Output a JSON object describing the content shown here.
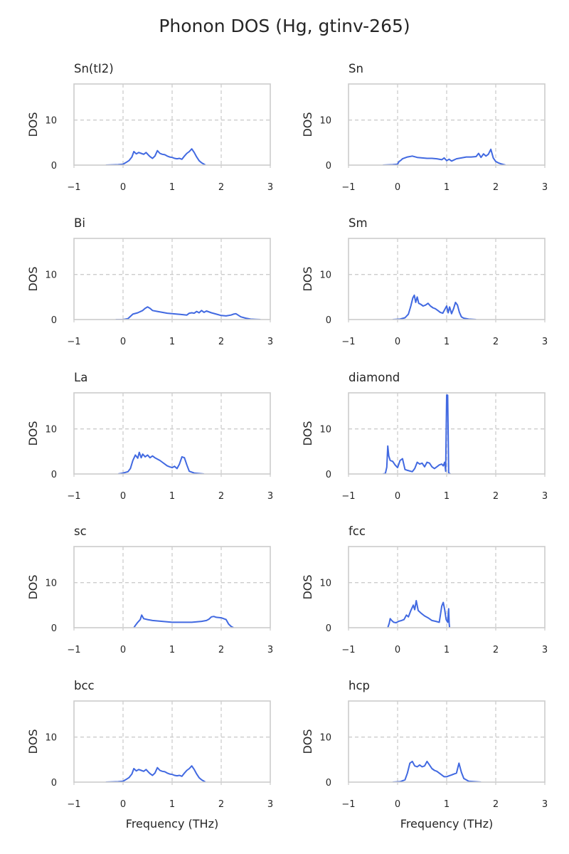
{
  "figure": {
    "title": "Phonon DOS (Hg, gtinv-265)",
    "line_color": "#4169e1"
  },
  "chart_data": [
    {
      "type": "line",
      "title": "Sn(tI2)",
      "xlabel": "",
      "ylabel": "DOS",
      "xlim": [
        -1,
        3
      ],
      "ylim": [
        0,
        18
      ],
      "xticks": [
        "−1",
        "0",
        "1",
        "2",
        "3"
      ],
      "yticks": [
        "0",
        "10"
      ],
      "grid": true,
      "x": [
        -0.35,
        -0.1,
        0.0,
        0.05,
        0.12,
        0.18,
        0.22,
        0.27,
        0.32,
        0.37,
        0.42,
        0.47,
        0.52,
        0.56,
        0.6,
        0.65,
        0.7,
        0.75,
        0.8,
        0.85,
        0.9,
        0.95,
        1.0,
        1.05,
        1.1,
        1.15,
        1.2,
        1.25,
        1.3,
        1.35,
        1.4,
        1.45,
        1.5,
        1.55,
        1.6,
        1.65,
        1.68
      ],
      "y": [
        0,
        0.1,
        0.2,
        0.5,
        1.0,
        1.8,
        3.0,
        2.5,
        2.8,
        2.6,
        2.4,
        2.8,
        2.2,
        1.8,
        1.5,
        2.0,
        3.2,
        2.6,
        2.4,
        2.3,
        2.0,
        1.8,
        1.7,
        1.5,
        1.4,
        1.5,
        1.3,
        2.0,
        2.6,
        3.0,
        3.6,
        2.8,
        1.8,
        1.0,
        0.5,
        0.2,
        0
      ]
    },
    {
      "type": "line",
      "title": "Sn",
      "xlabel": "",
      "ylabel": "DOS",
      "xlim": [
        -1,
        3
      ],
      "ylim": [
        0,
        18
      ],
      "xticks": [
        "−1",
        "0",
        "1",
        "2",
        "3"
      ],
      "yticks": [
        "0",
        "10"
      ],
      "grid": true,
      "x": [
        -0.3,
        -0.1,
        0.0,
        0.03,
        0.06,
        0.1,
        0.2,
        0.3,
        0.4,
        0.5,
        0.6,
        0.7,
        0.8,
        0.9,
        0.95,
        1.0,
        1.05,
        1.1,
        1.2,
        1.3,
        1.4,
        1.5,
        1.6,
        1.65,
        1.7,
        1.75,
        1.8,
        1.85,
        1.9,
        1.95,
        2.0,
        2.05,
        2.1,
        2.2
      ],
      "y": [
        0,
        0.1,
        0.2,
        0.8,
        1.0,
        1.4,
        1.8,
        2.0,
        1.7,
        1.6,
        1.5,
        1.5,
        1.4,
        1.2,
        1.6,
        1.0,
        1.3,
        0.9,
        1.4,
        1.6,
        1.8,
        1.8,
        1.9,
        2.6,
        1.7,
        2.5,
        2.0,
        2.4,
        3.5,
        1.6,
        0.8,
        0.5,
        0.3,
        0
      ]
    },
    {
      "type": "line",
      "title": "Bi",
      "xlabel": "",
      "ylabel": "DOS",
      "xlim": [
        -1,
        3
      ],
      "ylim": [
        0,
        18
      ],
      "xticks": [
        "−1",
        "0",
        "1",
        "2",
        "3"
      ],
      "yticks": [
        "0",
        "10"
      ],
      "grid": true,
      "x": [
        -0.15,
        0.0,
        0.1,
        0.2,
        0.3,
        0.4,
        0.45,
        0.5,
        0.55,
        0.6,
        0.7,
        0.8,
        0.9,
        1.0,
        1.1,
        1.2,
        1.3,
        1.35,
        1.4,
        1.45,
        1.5,
        1.55,
        1.6,
        1.65,
        1.7,
        1.8,
        1.9,
        2.0,
        2.1,
        2.2,
        2.25,
        2.3,
        2.4,
        2.5,
        2.6,
        2.7,
        2.8
      ],
      "y": [
        0,
        0,
        0.2,
        1.2,
        1.5,
        2.0,
        2.5,
        2.8,
        2.5,
        2.0,
        1.8,
        1.6,
        1.4,
        1.3,
        1.2,
        1.1,
        1.0,
        1.4,
        1.5,
        1.4,
        1.8,
        1.5,
        2.0,
        1.6,
        1.9,
        1.5,
        1.2,
        0.9,
        0.8,
        1.0,
        1.2,
        1.3,
        0.6,
        0.3,
        0.1,
        0.05,
        0
      ]
    },
    {
      "type": "line",
      "title": "Sm",
      "xlabel": "",
      "ylabel": "DOS",
      "xlim": [
        -1,
        3
      ],
      "ylim": [
        0,
        18
      ],
      "xticks": [
        "−1",
        "0",
        "1",
        "2",
        "3"
      ],
      "yticks": [
        "0",
        "10"
      ],
      "grid": true,
      "x": [
        -0.1,
        0.05,
        0.15,
        0.22,
        0.27,
        0.31,
        0.34,
        0.37,
        0.4,
        0.43,
        0.47,
        0.52,
        0.57,
        0.62,
        0.67,
        0.72,
        0.77,
        0.82,
        0.87,
        0.92,
        0.97,
        1.0,
        1.03,
        1.06,
        1.1,
        1.14,
        1.18,
        1.22,
        1.26,
        1.3,
        1.35,
        1.45,
        1.6
      ],
      "y": [
        0,
        0.1,
        0.4,
        1.2,
        3.0,
        4.8,
        5.4,
        3.8,
        5.0,
        3.6,
        3.4,
        3.0,
        3.2,
        3.6,
        3.0,
        2.6,
        2.4,
        2.0,
        1.6,
        1.4,
        2.4,
        3.0,
        1.5,
        2.8,
        1.3,
        2.4,
        3.8,
        3.2,
        1.6,
        0.6,
        0.3,
        0.1,
        0
      ]
    },
    {
      "type": "line",
      "title": "La",
      "xlabel": "",
      "ylabel": "DOS",
      "xlim": [
        -1,
        3
      ],
      "ylim": [
        0,
        18
      ],
      "xticks": [
        "−1",
        "0",
        "1",
        "2",
        "3"
      ],
      "yticks": [
        "0",
        "10"
      ],
      "grid": true,
      "x": [
        -0.1,
        0.0,
        0.1,
        0.15,
        0.2,
        0.25,
        0.3,
        0.33,
        0.37,
        0.4,
        0.45,
        0.5,
        0.55,
        0.6,
        0.65,
        0.7,
        0.75,
        0.8,
        0.85,
        0.9,
        0.95,
        1.0,
        1.05,
        1.1,
        1.15,
        1.2,
        1.25,
        1.3,
        1.35,
        1.45,
        1.65
      ],
      "y": [
        0,
        0.2,
        0.5,
        1.2,
        3.0,
        4.2,
        3.5,
        4.8,
        3.6,
        4.4,
        3.8,
        4.2,
        3.6,
        4.0,
        3.6,
        3.3,
        3.0,
        2.6,
        2.2,
        1.8,
        1.6,
        1.4,
        1.7,
        1.2,
        2.2,
        3.8,
        3.6,
        2.0,
        0.6,
        0.2,
        0
      ]
    },
    {
      "type": "line",
      "title": "diamond",
      "xlabel": "",
      "ylabel": "DOS",
      "xlim": [
        -1,
        3
      ],
      "ylim": [
        0,
        18
      ],
      "xticks": [
        "−1",
        "0",
        "1",
        "2",
        "3"
      ],
      "yticks": [
        "0",
        "10"
      ],
      "grid": true,
      "x": [
        -0.3,
        -0.25,
        -0.22,
        -0.2,
        -0.18,
        -0.15,
        -0.1,
        -0.05,
        0.0,
        0.05,
        0.1,
        0.15,
        0.2,
        0.3,
        0.35,
        0.4,
        0.45,
        0.5,
        0.55,
        0.6,
        0.65,
        0.7,
        0.75,
        0.8,
        0.85,
        0.9,
        0.93,
        0.96,
        0.98,
        1.0,
        1.01,
        1.02,
        1.04,
        1.06,
        1.08
      ],
      "y": [
        0,
        0.1,
        1.5,
        6.2,
        4.0,
        3.0,
        2.8,
        2.0,
        1.4,
        3.0,
        3.4,
        1.0,
        0.8,
        0.5,
        1.2,
        2.6,
        2.2,
        2.4,
        1.6,
        2.6,
        2.4,
        1.6,
        1.2,
        1.6,
        2.0,
        2.2,
        1.8,
        2.6,
        0.6,
        17.5,
        17.5,
        17.5,
        0.3,
        0.1,
        0
      ]
    },
    {
      "type": "line",
      "title": "sc",
      "xlabel": "",
      "ylabel": "DOS",
      "xlim": [
        -1,
        3
      ],
      "ylim": [
        0,
        18
      ],
      "xticks": [
        "−1",
        "0",
        "1",
        "2",
        "3"
      ],
      "yticks": [
        "0",
        "10"
      ],
      "grid": true,
      "x": [
        0.22,
        0.25,
        0.3,
        0.35,
        0.38,
        0.42,
        0.5,
        0.6,
        0.7,
        0.8,
        0.9,
        1.0,
        1.1,
        1.2,
        1.3,
        1.4,
        1.5,
        1.6,
        1.7,
        1.75,
        1.8,
        1.85,
        1.9,
        2.0,
        2.1,
        2.15,
        2.2,
        2.25
      ],
      "y": [
        0,
        0.5,
        1.2,
        1.8,
        2.8,
        2.0,
        1.8,
        1.6,
        1.5,
        1.4,
        1.3,
        1.2,
        1.2,
        1.2,
        1.2,
        1.2,
        1.3,
        1.4,
        1.6,
        1.9,
        2.4,
        2.5,
        2.3,
        2.2,
        1.8,
        0.8,
        0.3,
        0
      ]
    },
    {
      "type": "line",
      "title": "fcc",
      "xlabel": "",
      "ylabel": "DOS",
      "xlim": [
        -1,
        3
      ],
      "ylim": [
        0,
        18
      ],
      "xticks": [
        "−1",
        "0",
        "1",
        "2",
        "3"
      ],
      "yticks": [
        "0",
        "10"
      ],
      "grid": true,
      "x": [
        -0.2,
        -0.17,
        -0.15,
        -0.12,
        -0.08,
        -0.03,
        0.02,
        0.08,
        0.13,
        0.18,
        0.22,
        0.27,
        0.32,
        0.35,
        0.38,
        0.42,
        0.48,
        0.55,
        0.62,
        0.7,
        0.78,
        0.85,
        0.9,
        0.93,
        0.96,
        0.99,
        1.02,
        1.04,
        1.05,
        1.06
      ],
      "y": [
        0,
        1.0,
        2.0,
        1.6,
        1.2,
        1.1,
        1.4,
        1.6,
        1.8,
        2.8,
        2.4,
        3.8,
        5.0,
        4.0,
        6.0,
        3.8,
        3.2,
        2.6,
        2.2,
        1.6,
        1.4,
        1.2,
        4.8,
        5.6,
        4.0,
        1.8,
        1.2,
        4.2,
        1.0,
        0
      ]
    },
    {
      "type": "line",
      "title": "bcc",
      "xlabel": "",
      "ylabel": "DOS",
      "xlim": [
        -1,
        3
      ],
      "ylim": [
        0,
        18
      ],
      "xticks": [
        "−1",
        "0",
        "1",
        "2",
        "3"
      ],
      "yticks": [
        "0",
        "10"
      ],
      "grid": true,
      "x": [
        -0.35,
        -0.1,
        0.0,
        0.05,
        0.12,
        0.18,
        0.22,
        0.27,
        0.32,
        0.37,
        0.42,
        0.47,
        0.52,
        0.56,
        0.6,
        0.65,
        0.7,
        0.75,
        0.8,
        0.85,
        0.9,
        0.95,
        1.0,
        1.05,
        1.1,
        1.15,
        1.2,
        1.25,
        1.3,
        1.35,
        1.4,
        1.45,
        1.5,
        1.55,
        1.6,
        1.65,
        1.68
      ],
      "y": [
        0,
        0.1,
        0.2,
        0.5,
        1.0,
        1.8,
        3.0,
        2.5,
        2.8,
        2.6,
        2.4,
        2.8,
        2.2,
        1.8,
        1.5,
        2.0,
        3.2,
        2.6,
        2.4,
        2.3,
        2.0,
        1.8,
        1.7,
        1.5,
        1.4,
        1.5,
        1.3,
        2.0,
        2.6,
        3.0,
        3.6,
        2.8,
        1.8,
        1.0,
        0.5,
        0.2,
        0
      ]
    },
    {
      "type": "line",
      "title": "hcp",
      "xlabel": "",
      "ylabel": "DOS",
      "xlim": [
        -1,
        3
      ],
      "ylim": [
        0,
        18
      ],
      "xticks": [
        "−1",
        "0",
        "1",
        "2",
        "3"
      ],
      "yticks": [
        "0",
        "10"
      ],
      "grid": true,
      "x": [
        -0.1,
        0.05,
        0.15,
        0.2,
        0.25,
        0.3,
        0.35,
        0.4,
        0.45,
        0.5,
        0.55,
        0.6,
        0.65,
        0.7,
        0.75,
        0.8,
        0.85,
        0.9,
        0.95,
        1.0,
        1.05,
        1.1,
        1.15,
        1.2,
        1.25,
        1.3,
        1.35,
        1.45,
        1.7
      ],
      "y": [
        0,
        0.1,
        0.5,
        2.0,
        4.2,
        4.6,
        3.6,
        3.4,
        3.8,
        3.4,
        3.6,
        4.6,
        3.8,
        3.0,
        2.6,
        2.4,
        2.0,
        1.6,
        1.2,
        1.2,
        1.4,
        1.6,
        1.8,
        2.0,
        4.2,
        2.2,
        0.8,
        0.2,
        0
      ]
    }
  ],
  "layout_labels": {
    "bottom_xlabel_left": "Frequency (THz)",
    "bottom_xlabel_right": "Frequency (THz)"
  }
}
